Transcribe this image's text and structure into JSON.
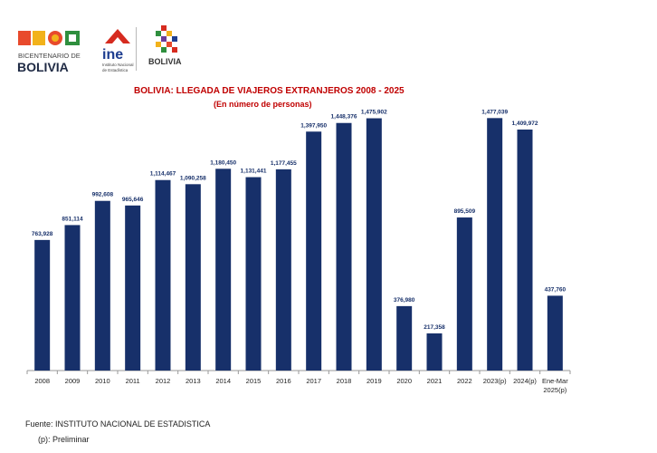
{
  "logos": {
    "bicentenario_line1": "BICENTENARIO DE",
    "bicentenario_line2": "BOLIVIA",
    "ine_abbrev": "ine",
    "ine_line1": "Instituto Nacional",
    "ine_line2": "de Estadística",
    "estado_label": "BOLIVIA"
  },
  "colors": {
    "bar": "#17306a",
    "label": "#17306a",
    "title": "#c00000",
    "ine_red": "#d62b1f",
    "ine_blue": "#1d3d8f"
  },
  "footer": {
    "source": "Fuente: INSTITUTO NACIONAL DE ESTADISTICA",
    "note": "(p): Preliminar"
  },
  "chart_data": {
    "type": "bar",
    "title": "BOLIVIA: LLEGADA DE VIAJEROS EXTRANJEROS  2008 - 2025",
    "subtitle": "(En número de personas)",
    "categories": [
      "2008",
      "2009",
      "2010",
      "2011",
      "2012",
      "2013",
      "2014",
      "2015",
      "2016",
      "2017",
      "2018",
      "2019",
      "2020",
      "2021",
      "2022",
      "2023(p)",
      "2024(p)",
      "Ene-Mar 2025(p)"
    ],
    "values": [
      763928,
      851114,
      992608,
      965646,
      1114467,
      1090258,
      1180450,
      1131441,
      1177455,
      1397950,
      1448376,
      1475902,
      376980,
      217358,
      895509,
      1477039,
      1409972,
      437760
    ],
    "data_labels": [
      "763,928",
      "851,114",
      "992,608",
      "965,646",
      "1,114,467",
      "1,090,258",
      "1,180,450",
      "1,131,441",
      "1,177,455",
      "1,397,950",
      "1,448,376",
      "1,475,902",
      "376,980",
      "217,358",
      "895,509",
      "1,477,039",
      "1,409,972",
      "437,760"
    ],
    "ylim": [
      0,
      1500000
    ],
    "grid": false,
    "legend": "none"
  }
}
